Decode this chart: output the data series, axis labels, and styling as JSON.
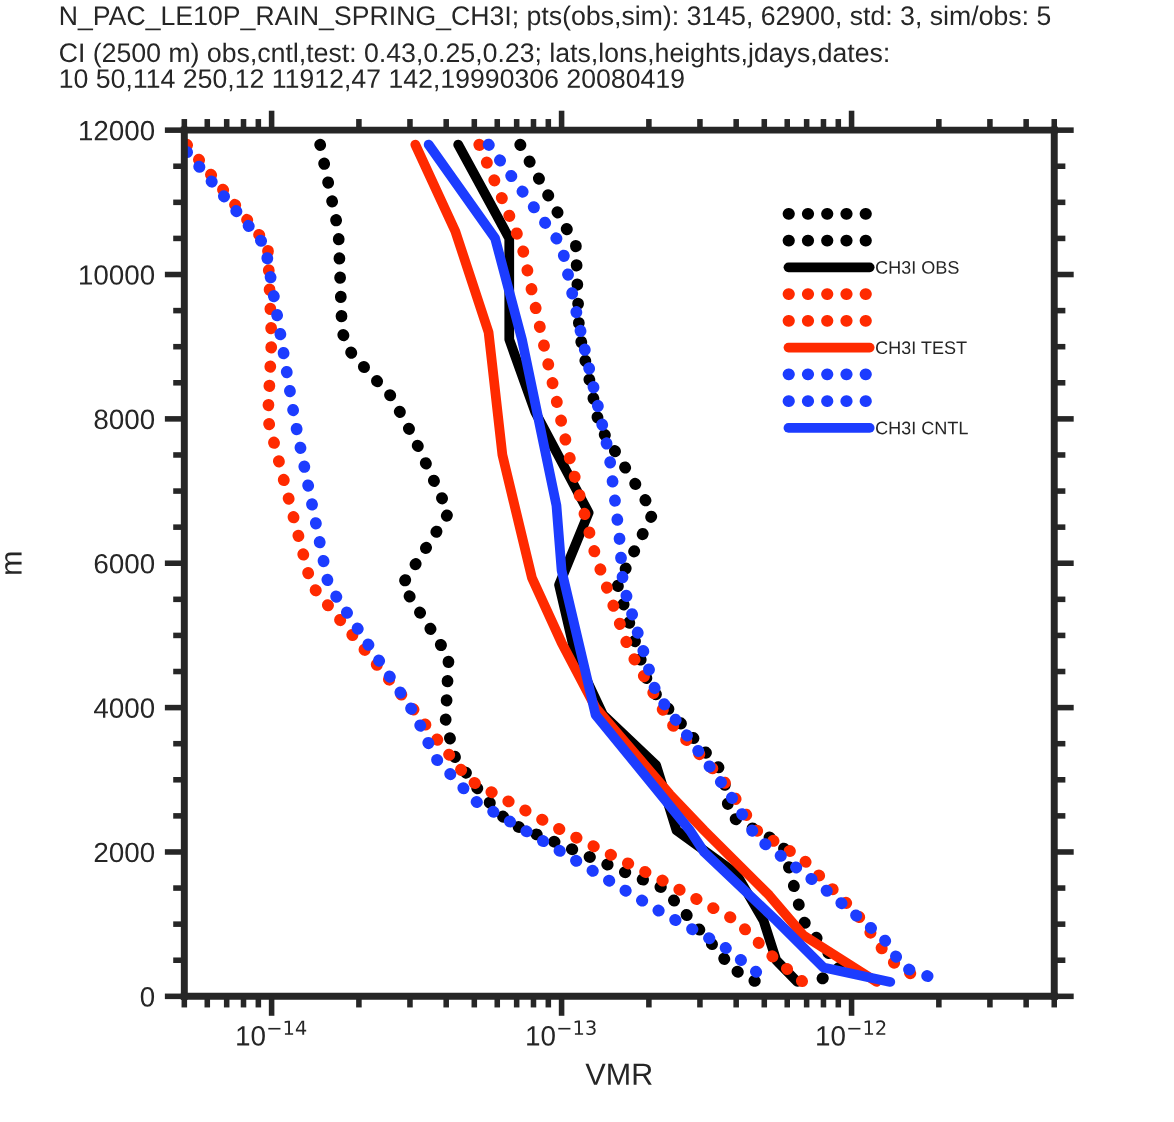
{
  "chart_data": {
    "type": "line",
    "title": "N_PAC_LE10P_RAIN_SPRING_CH3I; pts(obs,sim): 3145, 62900, std: 3, sim/obs: 5",
    "subtitle": "CI (2500 m) obs,cntl,test: 0.43,0.25,0.23; lats,lons,heights,jdays,dates:\n10 50,114 250,12 11912,47 142,19990306 20080419",
    "xlabel": "VMR",
    "ylabel": "m",
    "log": "x",
    "xlim": [
      5e-15,
      5e-12
    ],
    "xticks": [
      {
        "value": 1e-14,
        "label": "10$^{−14}$"
      },
      {
        "value": 1e-13,
        "label": "10$^{−13}$"
      },
      {
        "value": 1e-12,
        "label": "10$^{−12}$"
      }
    ],
    "ylim": [
      0,
      12000
    ],
    "yticks": [
      0,
      2000,
      4000,
      6000,
      8000,
      10000,
      12000
    ],
    "grid": false,
    "legend": "top right",
    "series": [
      {
        "color": "#000000",
        "line_style": "dotted",
        "x": [
          1.47e-14,
          1.7e-14,
          1.75e-14,
          1.89e-14,
          2.6e-14,
          3.13e-14,
          4.08e-14,
          2.82e-14,
          4.08e-14,
          3.98e-14,
          4.3e-14,
          5.3e-14,
          6.6e-14,
          1e-13,
          1.7e-13,
          2.24e-13,
          3.6e-13,
          3.8e-13,
          4.7e-13
        ],
        "values": [
          11800,
          10600,
          9200,
          8900,
          8300,
          7700,
          6700,
          5700,
          4700,
          3800,
          3300,
          2800,
          2400,
          2100,
          1700,
          1500,
          550,
          400,
          200
        ]
      },
      {
        "color": "#000000",
        "line_style": "dotted",
        "x": [
          7.2e-14,
          1.12e-13,
          1.15e-13,
          1.35e-13,
          2.07e-13,
          1.56e-13,
          2e-13,
          3.6e-13,
          3.8e-13,
          5.8e-13,
          6.8e-13,
          9.1e-13,
          7.6e-13
        ],
        "values": [
          11800,
          10400,
          9200,
          7900,
          6700,
          5700,
          4300,
          3100,
          2500,
          2100,
          1050,
          400,
          200
        ]
      },
      {
        "name": "CH3I OBS",
        "color": "#000000",
        "line_style": "solid",
        "x": [
          4.4e-14,
          6.6e-14,
          6.6e-14,
          8.1e-14,
          1.24e-13,
          9.8e-14,
          1.12e-13,
          1.39e-13,
          2.12e-13,
          2.36e-13,
          2.49e-13,
          4e-13,
          4.97e-13,
          5.5e-13,
          6.5e-13
        ],
        "values": [
          11800,
          10500,
          9100,
          8100,
          6700,
          5700,
          4700,
          3900,
          3200,
          2600,
          2300,
          1700,
          1050,
          500,
          200
        ]
      },
      {
        "color": "#ff2a00",
        "line_style": "dotted",
        "x": [
          5.1e-15,
          9.7e-15,
          1e-14,
          9.7e-15,
          1.37e-14,
          3.05e-14,
          4.79e-14,
          1e-13,
          2.24e-13,
          4e-13,
          5.5e-13,
          6.8e-13
        ],
        "values": [
          11800,
          10400,
          9100,
          8000,
          5700,
          4000,
          3000,
          2300,
          1600,
          1050,
          500,
          200
        ]
      },
      {
        "color": "#ff2a00",
        "line_style": "dotted",
        "x": [
          5.2e-14,
          7.3e-14,
          8.6e-14,
          1.06e-13,
          1.31e-13,
          1.71e-13,
          2.36e-13,
          3.6e-13,
          4.7e-13,
          6.8e-13,
          1.04e-12,
          1.36e-12,
          1.77e-12
        ],
        "values": [
          11800,
          10400,
          9100,
          7500,
          6100,
          4800,
          3800,
          3000,
          2300,
          1900,
          1150,
          500,
          200
        ]
      },
      {
        "name": "CH3I TEST",
        "color": "#ff2a00",
        "line_style": "solid",
        "x": [
          3.13e-14,
          4.3e-14,
          5.6e-14,
          6.25e-14,
          7.9e-14,
          1e-13,
          1.31e-13,
          2.36e-13,
          3.1e-13,
          5.2e-13,
          6.8e-13,
          1.22e-12
        ],
        "values": [
          11800,
          10600,
          9200,
          7500,
          5800,
          4900,
          4000,
          2800,
          2300,
          1400,
          850,
          200
        ]
      },
      {
        "color": "#1c3cff",
        "line_style": "dotted",
        "x": [
          5.1e-15,
          9.5e-15,
          1.08e-14,
          1.2e-14,
          1.57e-14,
          3.13e-14,
          3.67e-14,
          5.06e-14,
          1e-13,
          2.24e-13,
          3.6e-13,
          5e-13
        ],
        "values": [
          11700,
          10400,
          9100,
          8000,
          5700,
          3900,
          3300,
          2700,
          2000,
          1150,
          700,
          250
        ]
      },
      {
        "color": "#1c3cff",
        "line_style": "dotted",
        "x": [
          5.6e-14,
          1e-13,
          1.18e-13,
          1.46e-13,
          1.58e-13,
          1.63e-13,
          2.12e-13,
          3.8e-13,
          4.7e-13,
          8e-13,
          1.29e-12,
          1.51e-12,
          2.08e-12
        ],
        "values": [
          11800,
          10400,
          9100,
          7500,
          6400,
          5700,
          4200,
          2800,
          2200,
          1500,
          800,
          400,
          200
        ]
      },
      {
        "name": "CH3I CNTL",
        "color": "#1c3cff",
        "line_style": "solid",
        "x": [
          3.48e-14,
          5.9e-14,
          7.3e-14,
          9.6e-14,
          1e-13,
          1.31e-13,
          2.77e-13,
          3.1e-13,
          5.5e-13,
          8e-13,
          1.36e-12
        ],
        "values": [
          11800,
          10500,
          9100,
          6800,
          5900,
          3900,
          2300,
          2000,
          1050,
          400,
          200
        ]
      }
    ]
  }
}
